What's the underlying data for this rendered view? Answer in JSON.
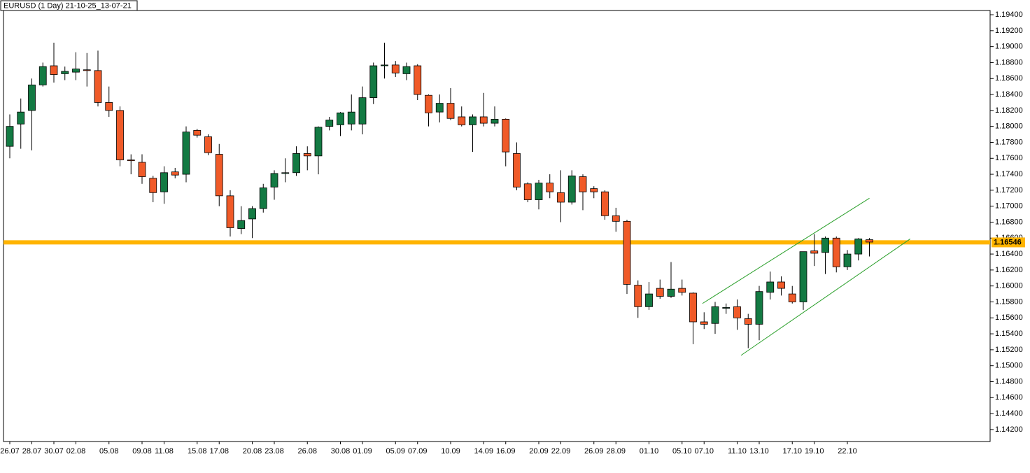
{
  "chart_data": {
    "type": "candlestick",
    "title": "EURUSD (1 Day) 21-10-25_13-07-21",
    "categories": [
      "26.07",
      null,
      "28.07",
      null,
      "30.07",
      null,
      "02.08",
      null,
      null,
      "05.08",
      null,
      null,
      "09.08",
      null,
      "11.08",
      null,
      null,
      "15.08",
      null,
      "17.08",
      null,
      null,
      "20.08",
      null,
      "23.08",
      null,
      null,
      "26.08",
      null,
      null,
      "30.08",
      null,
      "01.09",
      null,
      null,
      "05.09",
      null,
      "07.09",
      null,
      null,
      "10.09",
      null,
      null,
      "14.09",
      null,
      "16.09",
      null,
      null,
      "20.09",
      null,
      "22.09",
      null,
      null,
      "26.09",
      null,
      "28.09",
      null,
      null,
      "01.10",
      null,
      null,
      "05.10",
      null,
      "07.10",
      null,
      null,
      "11.10",
      null,
      "13.10",
      null,
      null,
      "17.10",
      null,
      "19.10",
      null,
      null,
      "22.10",
      null,
      null
    ],
    "open": [
      1.1775,
      1.1803,
      1.182,
      1.1852,
      1.1876,
      1.1866,
      1.1868,
      1.1871,
      1.187,
      1.183,
      1.182,
      1.1758,
      1.1755,
      1.1735,
      1.1718,
      1.1743,
      1.174,
      1.1795,
      1.1787,
      1.1765,
      1.1713,
      1.1672,
      1.1684,
      1.1697,
      1.1724,
      1.1741,
      1.1742,
      1.1766,
      1.1763,
      1.18,
      1.1802,
      1.1803,
      1.1803,
      1.1836,
      1.1876,
      1.1877,
      1.1866,
      1.1876,
      1.1839,
      1.1818,
      1.1829,
      1.1812,
      1.1802,
      1.1812,
      1.1804,
      1.1809,
      1.1766,
      1.1728,
      1.1708,
      1.1729,
      1.1717,
      1.1705,
      1.1737,
      1.1722,
      1.1718,
      1.1688,
      1.1681,
      1.1601,
      1.1574,
      1.1597,
      1.1587,
      1.1597,
      1.1591,
      1.1555,
      1.1553,
      1.1572,
      1.1574,
      1.1559,
      1.1552,
      1.1592,
      1.1605,
      1.159,
      1.158,
      1.1644,
      1.1642,
      1.166,
      1.1624,
      1.164,
      1.1658
    ],
    "high": [
      1.1815,
      1.1835,
      1.186,
      1.188,
      1.1905,
      1.1875,
      1.1893,
      1.1892,
      1.1895,
      1.185,
      1.1825,
      1.1765,
      1.1765,
      1.1738,
      1.175,
      1.1748,
      1.18,
      1.1797,
      1.179,
      1.1778,
      1.172,
      1.17,
      1.17,
      1.1728,
      1.1745,
      1.176,
      1.1775,
      1.1775,
      1.18,
      1.1812,
      1.1818,
      1.184,
      1.185,
      1.188,
      1.1905,
      1.1882,
      1.188,
      1.1878,
      1.184,
      1.184,
      1.1848,
      1.1825,
      1.1815,
      1.1842,
      1.1825,
      1.181,
      1.178,
      1.173,
      1.1733,
      1.174,
      1.1745,
      1.1745,
      1.174,
      1.1725,
      1.172,
      1.1698,
      1.1683,
      1.1607,
      1.1605,
      1.1608,
      1.163,
      1.1608,
      1.1592,
      1.1567,
      1.158,
      1.1578,
      1.1583,
      1.1565,
      1.16,
      1.1618,
      1.1612,
      1.16,
      1.1643,
      1.1665,
      1.1662,
      1.1662,
      1.1645,
      1.166,
      1.166
    ],
    "low": [
      1.176,
      1.1772,
      1.177,
      1.185,
      1.1855,
      1.1858,
      1.1858,
      1.185,
      1.1825,
      1.1812,
      1.175,
      1.174,
      1.1728,
      1.1705,
      1.1703,
      1.1735,
      1.173,
      1.1786,
      1.1764,
      1.17,
      1.1662,
      1.1665,
      1.166,
      1.1692,
      1.1708,
      1.173,
      1.1738,
      1.1745,
      1.174,
      1.1795,
      1.1788,
      1.1795,
      1.179,
      1.1828,
      1.186,
      1.1862,
      1.1858,
      1.1833,
      1.18,
      1.1805,
      1.1808,
      1.18,
      1.1768,
      1.18,
      1.18,
      1.175,
      1.172,
      1.1705,
      1.1696,
      1.171,
      1.168,
      1.1702,
      1.1695,
      1.171,
      1.1683,
      1.1668,
      1.159,
      1.156,
      1.157,
      1.1584,
      1.1585,
      1.1588,
      1.1527,
      1.1546,
      1.154,
      1.1565,
      1.1545,
      1.1522,
      1.1532,
      1.1583,
      1.1588,
      1.1578,
      1.157,
      1.1625,
      1.1615,
      1.1617,
      1.162,
      1.1632,
      1.1637
    ],
    "close": [
      1.18,
      1.1818,
      1.1852,
      1.1875,
      1.1865,
      1.1869,
      1.1872,
      1.187,
      1.183,
      1.182,
      1.1758,
      1.1757,
      1.1737,
      1.1717,
      1.1742,
      1.1739,
      1.1793,
      1.1789,
      1.1767,
      1.1713,
      1.1673,
      1.1682,
      1.1697,
      1.1723,
      1.1741,
      1.1742,
      1.1766,
      1.1763,
      1.1799,
      1.1808,
      1.1817,
      1.1818,
      1.1836,
      1.1876,
      1.1877,
      1.1867,
      1.1875,
      1.184,
      1.1817,
      1.1829,
      1.181,
      1.1802,
      1.1812,
      1.1804,
      1.1809,
      1.1768,
      1.1724,
      1.1708,
      1.1729,
      1.1718,
      1.1705,
      1.1738,
      1.1718,
      1.1718,
      1.1688,
      1.1681,
      1.1602,
      1.1574,
      1.159,
      1.1587,
      1.1596,
      1.1592,
      1.1555,
      1.1552,
      1.1574,
      1.1573,
      1.156,
      1.1552,
      1.1593,
      1.1605,
      1.1597,
      1.158,
      1.1643,
      1.1641,
      1.166,
      1.1624,
      1.164,
      1.1659,
      1.1655
    ],
    "up_color": "#137a43",
    "down_color": "#f05a28",
    "ylim": [
      1.1405,
      1.19453
    ],
    "yticks": [
      {
        "value": 1.194,
        "label": "1.19400"
      },
      {
        "value": 1.192,
        "label": "1.19200"
      },
      {
        "value": 1.19,
        "label": "1.19000"
      },
      {
        "value": 1.188,
        "label": "1.18800"
      },
      {
        "value": 1.186,
        "label": "1.18600"
      },
      {
        "value": 1.184,
        "label": "1.18400"
      },
      {
        "value": 1.182,
        "label": "1.18200"
      },
      {
        "value": 1.18,
        "label": "1.18000"
      },
      {
        "value": 1.178,
        "label": "1.17800"
      },
      {
        "value": 1.176,
        "label": "1.17600"
      },
      {
        "value": 1.174,
        "label": "1.17400"
      },
      {
        "value": 1.172,
        "label": "1.17200"
      },
      {
        "value": 1.17,
        "label": "1.17000"
      },
      {
        "value": 1.168,
        "label": "1.16800"
      },
      {
        "value": 1.166,
        "label": "1.16600"
      },
      {
        "value": 1.164,
        "label": "1.16400"
      },
      {
        "value": 1.162,
        "label": "1.16200"
      },
      {
        "value": 1.16,
        "label": "1.16000"
      },
      {
        "value": 1.158,
        "label": "1.15800"
      },
      {
        "value": 1.156,
        "label": "1.15600"
      },
      {
        "value": 1.154,
        "label": "1.15400"
      },
      {
        "value": 1.152,
        "label": "1.15200"
      },
      {
        "value": 1.15,
        "label": "1.15000"
      },
      {
        "value": 1.148,
        "label": "1.14800"
      },
      {
        "value": 1.146,
        "label": "1.14600"
      },
      {
        "value": 1.144,
        "label": "1.14400"
      },
      {
        "value": 1.142,
        "label": "1.14200"
      }
    ],
    "last_price": {
      "value": 1.16546,
      "label": "1.16546",
      "color": "#ffb400"
    },
    "trendlines": [
      {
        "x": [
          62.85,
          78
        ],
        "y": [
          1.1578,
          1.171
        ],
        "color": "#2ca02c"
      },
      {
        "x": [
          66.35,
          81.7
        ],
        "y": [
          1.1513,
          1.1659
        ],
        "color": "#2ca02c"
      }
    ]
  }
}
